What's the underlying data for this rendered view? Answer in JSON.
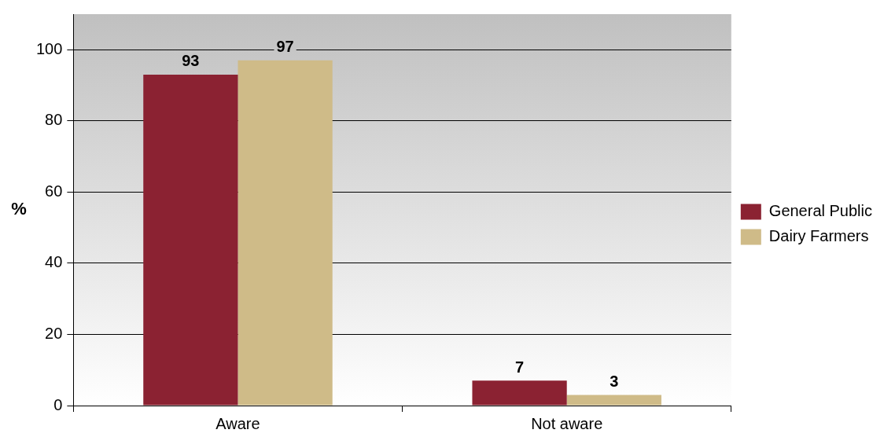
{
  "chart_data": {
    "type": "bar",
    "ylabel": "%",
    "categories": [
      "Aware",
      "Not aware"
    ],
    "series": [
      {
        "name": "General Public",
        "color": "#8b2232",
        "values": [
          93,
          7
        ]
      },
      {
        "name": "Dairy Farmers",
        "color": "#cfbb88",
        "values": [
          97,
          3
        ]
      }
    ],
    "ylim": [
      0,
      110
    ],
    "yticks": [
      0,
      20,
      40,
      60,
      80,
      100
    ],
    "grid": "y",
    "legend": "right",
    "data_labels": true
  }
}
